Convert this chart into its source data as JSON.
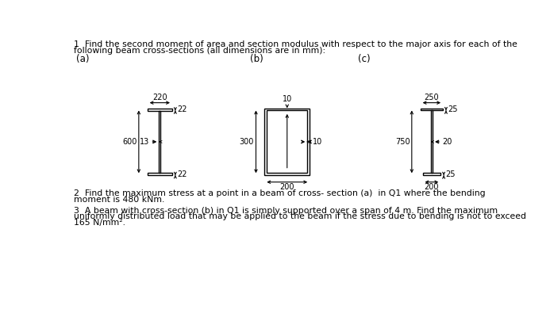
{
  "title1": "1  Find the second moment of area and section modulus with respect to the major axis for each of the",
  "title2": "following beam cross-sections (all dimensions are in mm):",
  "q2_line1": "2  Find the maximum stress at a point in a beam of cross- section (a)  in Q1 where the bending",
  "q2_line2": "moment is 480 kNm.",
  "q3_line1": "3  A beam with cross-section (b) in Q1 is simply supported over a span of 4 m. Find the maximum",
  "q3_line2": "uniformly distributed load that may be applied to the beam if the stress due to bending is not to exceed",
  "q3_line3": "165 N/mm².",
  "bg_color": "#ffffff",
  "lc": "#000000",
  "label_a": "(a)",
  "label_b": "(b)",
  "label_c": "(c)",
  "dim_220": "220",
  "dim_22t": "22",
  "dim_13": "13",
  "dim_600": "600",
  "dim_22b": "22",
  "dim_10t": "10",
  "dim_300": "300",
  "dim_10r": "10",
  "dim_200b": "200",
  "dim_250": "250",
  "dim_25t": "25",
  "dim_20": "20",
  "dim_750": "750",
  "dim_25b": "25",
  "dim_200c": "200",
  "fs_text": 7.8,
  "fs_dim": 7.0,
  "fs_label": 8.5
}
